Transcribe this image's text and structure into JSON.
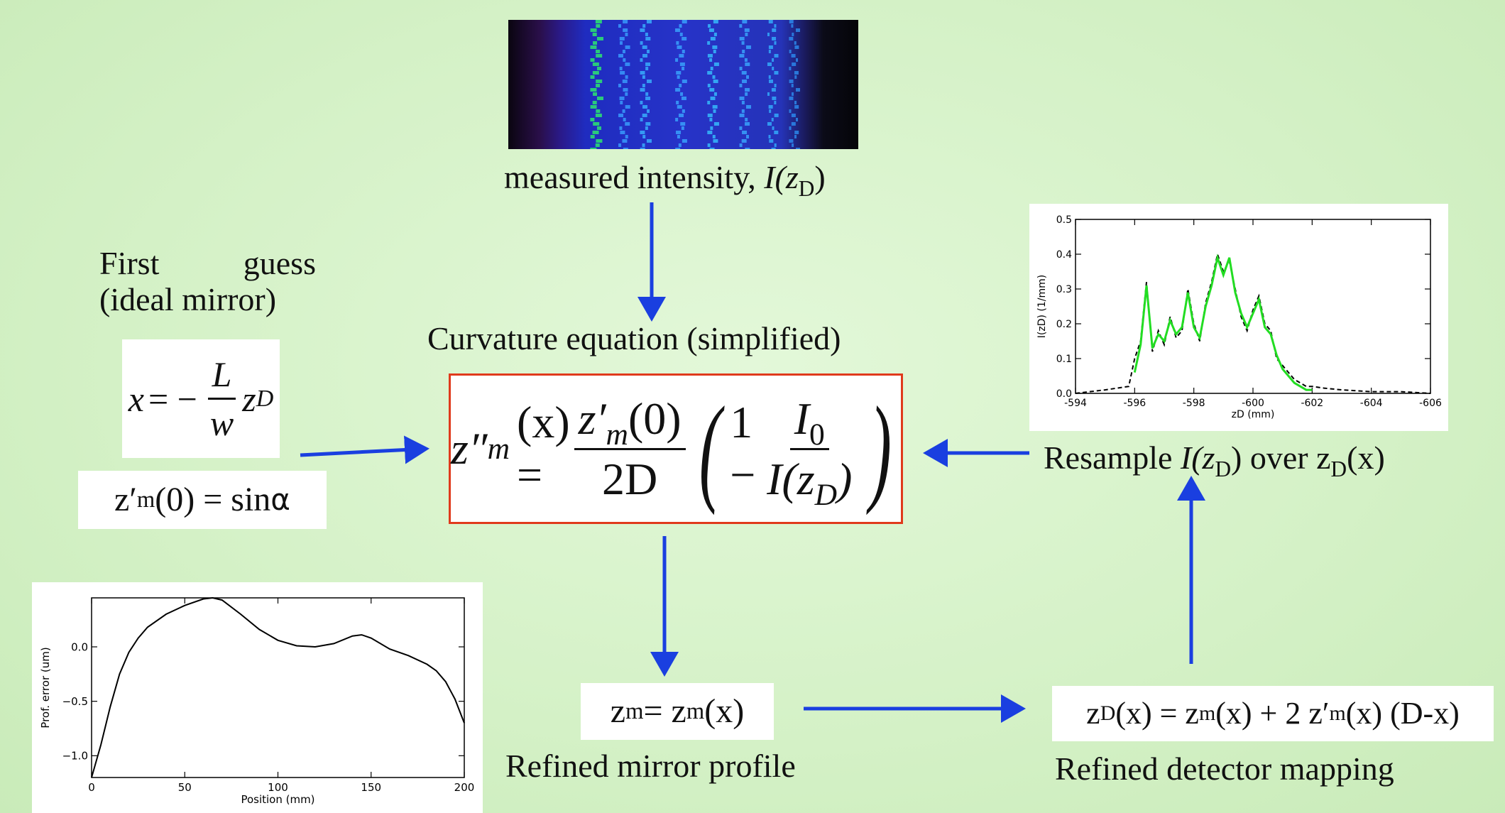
{
  "colors": {
    "arrow": "#1a3fe0",
    "equation_border": "#e03a1c",
    "profile_fit": "#22dd22"
  },
  "intensity": {
    "caption_prefix": "measured intensity, ",
    "caption_var": "I(z",
    "caption_sub": "D",
    "caption_close": ")"
  },
  "first_guess": {
    "title_line1_a": "First",
    "title_line1_b": "guess",
    "title_line2": "(ideal mirror)",
    "mapping_lhs": "x",
    "mapping_eq": "= −",
    "mapping_num": "L",
    "mapping_den": "w",
    "mapping_var": "z",
    "mapping_sub": "D",
    "slope_a": "z′",
    "slope_sub": "m",
    "slope_b": "(0) = sin",
    "slope_alpha": "α"
  },
  "curvature": {
    "title": "Curvature equation (simplified)",
    "lhs": "z″",
    "lhs_sub": "m",
    "lhs_arg": "(x) =",
    "num": "z′",
    "num_sub": "m",
    "num_arg": "(0)",
    "den": "2D",
    "one_minus": "1 −",
    "i0": "I",
    "i0_sub": "0",
    "iz": "I(z",
    "iz_sub": "D",
    "iz_close": ")"
  },
  "resample": {
    "text_a": "Resample ",
    "text_var": "I(z",
    "text_sub": "D",
    "text_b": ") over z",
    "text_sub2": "D",
    "text_c": "(x)"
  },
  "mirror": {
    "eq_a": "z",
    "eq_sub": "m",
    "eq_b": " = z",
    "eq_sub2": "m",
    "eq_c": "(x)",
    "caption": "Refined mirror profile"
  },
  "detector": {
    "eq_a": "z",
    "eq_sub": "D",
    "eq_b": "(x) = z",
    "eq_sub2": "m",
    "eq_c": "(x) + 2 z′",
    "eq_sub3": "m",
    "eq_d": "(x) (D-x)",
    "caption": "Refined detector mapping"
  },
  "chart_data": [
    {
      "type": "line",
      "ylabel": "I(zD) (1/mm)",
      "xlabel": "zD (mm)",
      "xlim": [
        -594,
        -606
      ],
      "ylim": [
        0.0,
        0.5
      ],
      "x_ticks": [
        "-594",
        "-596",
        "-598",
        "-600",
        "-602",
        "-604",
        "-606"
      ],
      "y_ticks": [
        "0.0",
        "0.1",
        "0.2",
        "0.3",
        "0.4",
        "0.5"
      ],
      "series": [
        {
          "style": "dashed-black",
          "x": [
            -594.0,
            -595.0,
            -595.8,
            -596.0,
            -596.2,
            -596.4,
            -596.6,
            -596.8,
            -597.0,
            -597.2,
            -597.4,
            -597.6,
            -597.8,
            -598.0,
            -598.2,
            -598.4,
            -598.6,
            -598.8,
            -599.0,
            -599.2,
            -599.4,
            -599.6,
            -599.8,
            -600.0,
            -600.2,
            -600.4,
            -600.6,
            -600.8,
            -601.0,
            -601.2,
            -601.4,
            -601.6,
            -601.8,
            -602.0,
            -602.4,
            -603.0,
            -604.0,
            -605.0,
            -606.0
          ],
          "y": [
            0.0,
            0.01,
            0.02,
            0.1,
            0.15,
            0.32,
            0.12,
            0.18,
            0.14,
            0.22,
            0.16,
            0.18,
            0.3,
            0.2,
            0.15,
            0.26,
            0.32,
            0.4,
            0.35,
            0.38,
            0.3,
            0.22,
            0.18,
            0.24,
            0.28,
            0.2,
            0.18,
            0.1,
            0.08,
            0.06,
            0.04,
            0.03,
            0.02,
            0.02,
            0.015,
            0.01,
            0.005,
            0.005,
            0.0
          ]
        },
        {
          "style": "solid-green",
          "x": [
            -596.0,
            -596.2,
            -596.4,
            -596.6,
            -596.8,
            -597.0,
            -597.2,
            -597.4,
            -597.6,
            -597.8,
            -598.0,
            -598.2,
            -598.4,
            -598.6,
            -598.8,
            -599.0,
            -599.2,
            -599.4,
            -599.6,
            -599.8,
            -600.0,
            -600.2,
            -600.4,
            -600.6,
            -600.8,
            -601.0,
            -601.2,
            -601.4,
            -601.6,
            -601.8,
            -602.0
          ],
          "y": [
            0.06,
            0.14,
            0.31,
            0.13,
            0.17,
            0.15,
            0.21,
            0.17,
            0.19,
            0.29,
            0.19,
            0.16,
            0.25,
            0.31,
            0.39,
            0.34,
            0.39,
            0.29,
            0.23,
            0.19,
            0.23,
            0.27,
            0.19,
            0.17,
            0.11,
            0.07,
            0.05,
            0.03,
            0.02,
            0.01,
            0.01
          ]
        }
      ]
    },
    {
      "type": "line",
      "ylabel": "Prof. error (um)",
      "xlabel": "Position (mm)",
      "xlim": [
        0,
        200
      ],
      "ylim": [
        -1.2,
        0.45
      ],
      "x_ticks": [
        "0",
        "50",
        "100",
        "150",
        "200"
      ],
      "y_ticks": [
        "0.0",
        "−0.5",
        "−1.0"
      ],
      "series": [
        {
          "style": "solid-black",
          "x": [
            0,
            5,
            10,
            15,
            20,
            25,
            30,
            40,
            50,
            60,
            65,
            70,
            80,
            90,
            100,
            110,
            120,
            130,
            140,
            145,
            150,
            160,
            170,
            180,
            185,
            190,
            195,
            200
          ],
          "y": [
            -1.2,
            -0.9,
            -0.55,
            -0.25,
            -0.05,
            0.08,
            0.18,
            0.3,
            0.38,
            0.44,
            0.45,
            0.43,
            0.3,
            0.16,
            0.06,
            0.01,
            0.0,
            0.03,
            0.1,
            0.11,
            0.08,
            -0.02,
            -0.08,
            -0.16,
            -0.22,
            -0.32,
            -0.48,
            -0.7
          ]
        }
      ]
    }
  ]
}
